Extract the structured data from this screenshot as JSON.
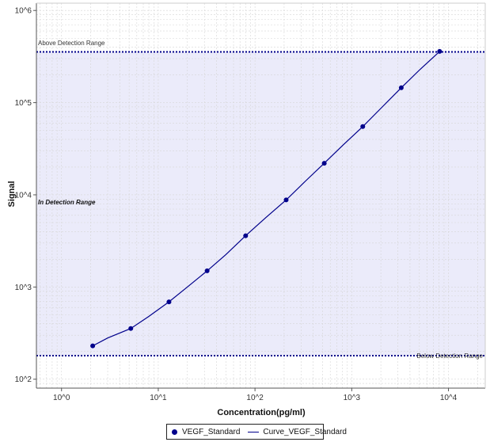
{
  "chart_data": {
    "type": "scatter",
    "x_scale": "log",
    "y_scale": "log",
    "xlabel": "Concentration(pg/ml)",
    "ylabel": "Signal",
    "xlim": [
      0.55,
      24000
    ],
    "ylim": [
      80,
      1200000
    ],
    "x_ticks": [
      {
        "value": 1,
        "label": "10^0"
      },
      {
        "value": 10,
        "label": "10^1"
      },
      {
        "value": 100,
        "label": "10^2"
      },
      {
        "value": 1000,
        "label": "10^3"
      },
      {
        "value": 10000,
        "label": "10^4"
      }
    ],
    "y_ticks": [
      {
        "value": 100,
        "label": "10^2"
      },
      {
        "value": 1000,
        "label": "10^3"
      },
      {
        "value": 10000,
        "label": "10^4"
      },
      {
        "value": 100000,
        "label": "10^5"
      },
      {
        "value": 1000000,
        "label": "10^6"
      }
    ],
    "grid": true,
    "series": [
      {
        "name": "VEGF_Standard",
        "kind": "points",
        "color": "#00008b",
        "x": [
          2.1,
          5.2,
          12.9,
          32.0,
          80.0,
          210,
          520,
          1300,
          3250,
          8100
        ],
        "y": [
          230,
          355,
          690,
          1500,
          3600,
          8800,
          22000,
          55000,
          145000,
          360000
        ]
      },
      {
        "name": "Curve_VEGF_Standard",
        "kind": "line",
        "color": "#00008b",
        "x": [
          2.1,
          3.0,
          5.2,
          8.0,
          12.9,
          20,
          32.0,
          50,
          80.0,
          130,
          210,
          330,
          520,
          820,
          1300,
          2050,
          3250,
          5100,
          8100
        ],
        "y": [
          230,
          280,
          355,
          480,
          690,
          1000,
          1500,
          2250,
          3600,
          5700,
          8800,
          14000,
          22000,
          35000,
          55000,
          89000,
          145000,
          230000,
          360000
        ]
      }
    ],
    "detection_range": {
      "upper": 355000,
      "lower": 180,
      "fill_color": "#ebebfa",
      "line_color": "#00008b",
      "upper_label": "Above Detection Range",
      "lower_label": "Below Detection Range",
      "zone_label": "In Detection Range"
    },
    "legend": {
      "position": "bottom-center",
      "items": [
        {
          "label": "VEGF_Standard",
          "symbol": "dot"
        },
        {
          "label": "Curve_VEGF_Standard",
          "symbol": "line"
        }
      ]
    }
  }
}
